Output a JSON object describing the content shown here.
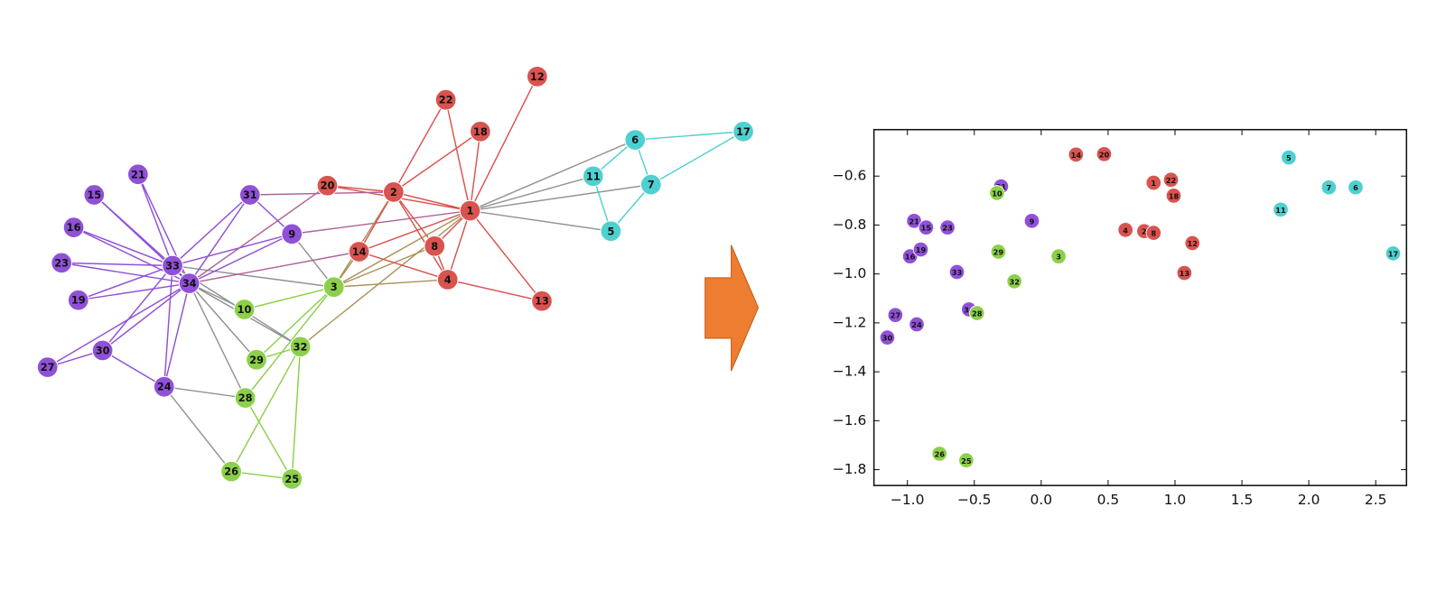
{
  "graph": {
    "nodes": [
      {
        "label": "1",
        "color": "#d9534f"
      },
      {
        "label": "2",
        "color": "#d9534f"
      },
      {
        "label": "3",
        "color": "#8cd04a"
      },
      {
        "label": "4",
        "color": "#d9534f"
      },
      {
        "label": "5",
        "color": "#4fd0d0"
      },
      {
        "label": "6",
        "color": "#4fd0d0"
      },
      {
        "label": "7",
        "color": "#4fd0d0"
      },
      {
        "label": "8",
        "color": "#d9534f"
      },
      {
        "label": "9",
        "color": "#9050d8"
      },
      {
        "label": "10",
        "color": "#8cd04a"
      },
      {
        "label": "11",
        "color": "#4fd0d0"
      },
      {
        "label": "12",
        "color": "#d9534f"
      },
      {
        "label": "13",
        "color": "#d9534f"
      },
      {
        "label": "14",
        "color": "#d9534f"
      },
      {
        "label": "15",
        "color": "#9050d8"
      },
      {
        "label": "16",
        "color": "#9050d8"
      },
      {
        "label": "17",
        "color": "#4fd0d0"
      },
      {
        "label": "18",
        "color": "#d9534f"
      },
      {
        "label": "19",
        "color": "#9050d8"
      },
      {
        "label": "20",
        "color": "#d9534f"
      },
      {
        "label": "21",
        "color": "#9050d8"
      },
      {
        "label": "22",
        "color": "#d9534f"
      },
      {
        "label": "23",
        "color": "#9050d8"
      },
      {
        "label": "24",
        "color": "#9050d8"
      },
      {
        "label": "25",
        "color": "#8cd04a"
      },
      {
        "label": "26",
        "color": "#8cd04a"
      },
      {
        "label": "27",
        "color": "#9050d8"
      },
      {
        "label": "28",
        "color": "#8cd04a"
      },
      {
        "label": "29",
        "color": "#8cd04a"
      },
      {
        "label": "30",
        "color": "#9050d8"
      },
      {
        "label": "31",
        "color": "#9050d8"
      },
      {
        "label": "32",
        "color": "#8cd04a"
      },
      {
        "label": "33",
        "color": "#9050d8"
      },
      {
        "label": "34",
        "color": "#9050d8"
      }
    ]
  },
  "chart_data": {
    "type": "scatter",
    "xlim": [
      -1.25,
      2.73
    ],
    "ylim": [
      -1.865,
      -0.41
    ],
    "xticks": [
      {
        "value": -1.0,
        "label": "−1.0"
      },
      {
        "value": -0.5,
        "label": "−0.5"
      },
      {
        "value": 0,
        "label": "0.0"
      },
      0.5,
      {
        "value": 1.0,
        "label": "1.0"
      },
      1.5,
      {
        "value": 2.0,
        "label": "2.0"
      },
      2.5
    ],
    "yticks": [
      {
        "value": -0.6,
        "label": "−0.6"
      },
      {
        "value": -0.8,
        "label": "−0.8"
      },
      {
        "value": -1.0,
        "label": "−1.0"
      },
      {
        "value": -1.2,
        "label": "−1.2"
      },
      {
        "value": -1.4,
        "label": "−1.4"
      },
      {
        "value": -1.6,
        "label": "−1.6"
      },
      {
        "value": -1.8,
        "label": "−1.8"
      }
    ],
    "series": [
      {
        "color": "#d9534f",
        "labels": [
          "14",
          "20",
          "1",
          "22",
          "18",
          "4",
          "2",
          "8",
          "12",
          "13"
        ],
        "x": [
          0.26,
          0.47,
          0.84,
          0.97,
          0.99,
          0.63,
          0.77,
          0.84,
          1.13,
          1.07
        ],
        "values": [
          -0.512,
          -0.51,
          -0.627,
          -0.615,
          -0.68,
          -0.82,
          -0.825,
          -0.832,
          -0.874,
          -0.996
        ]
      },
      {
        "color": "#4fd0d0",
        "labels": [
          "5",
          "11",
          "7",
          "6",
          "17"
        ],
        "x": [
          1.85,
          1.79,
          2.15,
          2.35,
          2.63
        ],
        "values": [
          -0.524,
          -0.737,
          -0.646,
          -0.646,
          -0.916
        ]
      },
      {
        "color": "#9050d8",
        "labels": [
          "31",
          "9",
          "21",
          "15",
          "23",
          "16",
          "19",
          "33",
          "27",
          "24",
          "30",
          "34"
        ],
        "x": [
          -0.3,
          -0.07,
          -0.95,
          -0.86,
          -0.7,
          -0.98,
          -0.9,
          -0.63,
          -1.09,
          -0.93,
          -1.15,
          -0.54
        ],
        "values": [
          -0.642,
          -0.783,
          -0.783,
          -0.81,
          -0.81,
          -0.928,
          -0.9,
          -0.992,
          -1.168,
          -1.206,
          -1.26,
          -1.145
        ]
      },
      {
        "color": "#8cd04a",
        "labels": [
          "10",
          "29",
          "3",
          "32",
          "28",
          "26",
          "25"
        ],
        "x": [
          -0.33,
          -0.32,
          0.13,
          -0.2,
          -0.48,
          -0.76,
          -0.56
        ],
        "values": [
          -0.669,
          -0.909,
          -0.928,
          -1.03,
          -1.16,
          -1.735,
          -1.762
        ]
      }
    ]
  }
}
